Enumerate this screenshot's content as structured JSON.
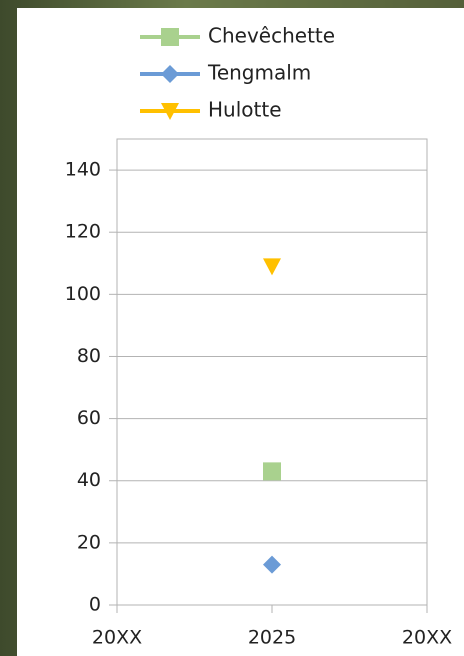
{
  "chart_data": {
    "type": "scatter",
    "categories": [
      "20XX",
      "2025",
      "20XX"
    ],
    "series": [
      {
        "name": "Chevêchette",
        "color": "#a9d18e",
        "marker": "square",
        "values": [
          null,
          43,
          null
        ]
      },
      {
        "name": "Tengmalm",
        "color": "#6b9bd6",
        "marker": "diamond",
        "values": [
          null,
          13,
          null
        ]
      },
      {
        "name": "Hulotte",
        "color": "#ffc000",
        "marker": "triangle-down",
        "values": [
          null,
          109,
          null
        ]
      }
    ],
    "ylim": [
      0,
      150
    ],
    "yticks": [
      0,
      20,
      40,
      60,
      80,
      100,
      120,
      140
    ],
    "grid": true,
    "legend": "top"
  }
}
